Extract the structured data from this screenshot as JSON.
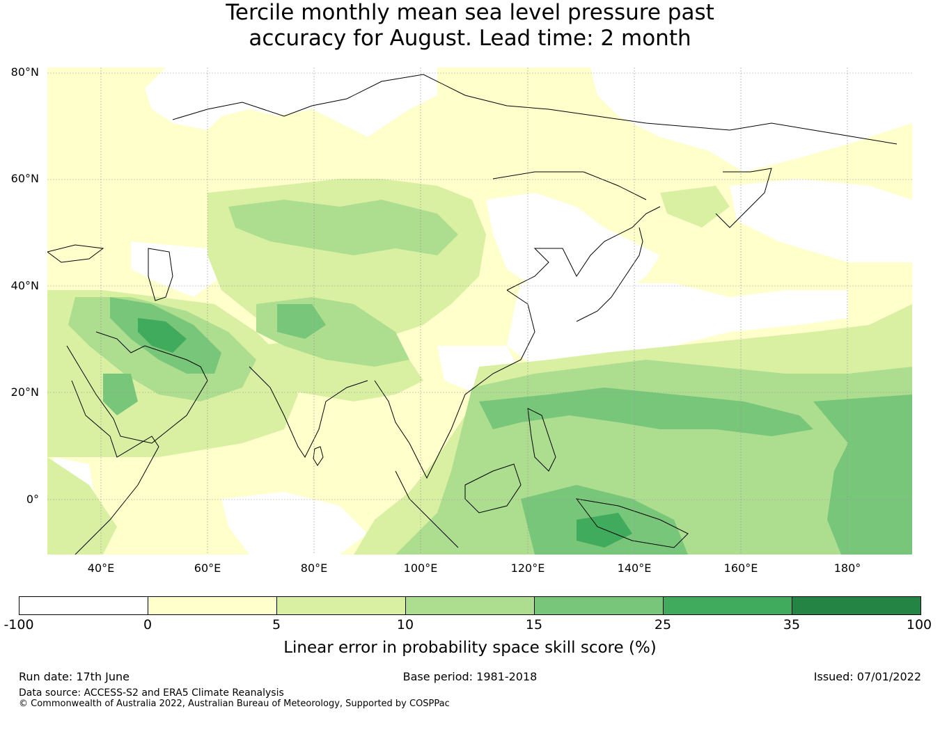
{
  "title": {
    "line1": "Tercile monthly mean sea level pressure past",
    "line2": "accuracy for August. Lead time: 2 month"
  },
  "map": {
    "lat_labels": [
      "80°N",
      "60°N",
      "40°N",
      "20°N",
      "0°"
    ],
    "lon_labels": [
      "40°E",
      "60°E",
      "80°E",
      "100°E",
      "120°E",
      "140°E",
      "160°E",
      "180°"
    ],
    "extent": {
      "lon": [
        30,
        192
      ],
      "lat": [
        -10,
        81
      ]
    },
    "colors": {
      "lt0": "#ffffff",
      "b0_5": "#ffffcc",
      "b5_10": "#d9f0a3",
      "b10_15": "#addd8e",
      "b15_25": "#78c679",
      "b25_35": "#41ab5d",
      "b35_100": "#238443",
      "coast": "#000000",
      "grid": "#999999"
    }
  },
  "colorbar": {
    "ticks": [
      "-100",
      "0",
      "5",
      "10",
      "15",
      "25",
      "35",
      "100"
    ],
    "colors": [
      "#ffffff",
      "#ffffcc",
      "#d9f0a3",
      "#addd8e",
      "#78c679",
      "#41ab5d",
      "#238443"
    ],
    "label": "Linear error in probability space skill score (%)"
  },
  "footer": {
    "run_date": "Run date: 17th June",
    "base_period": "Base period: 1981-2018",
    "issued": "Issued: 07/01/2022",
    "data_source": "Data source: ACCESS-S2 and ERA5 Climate Reanalysis",
    "copyright": "© Commonwealth of Australia 2022, Australian Bureau of Meteorology, Supported by COSPPac"
  }
}
